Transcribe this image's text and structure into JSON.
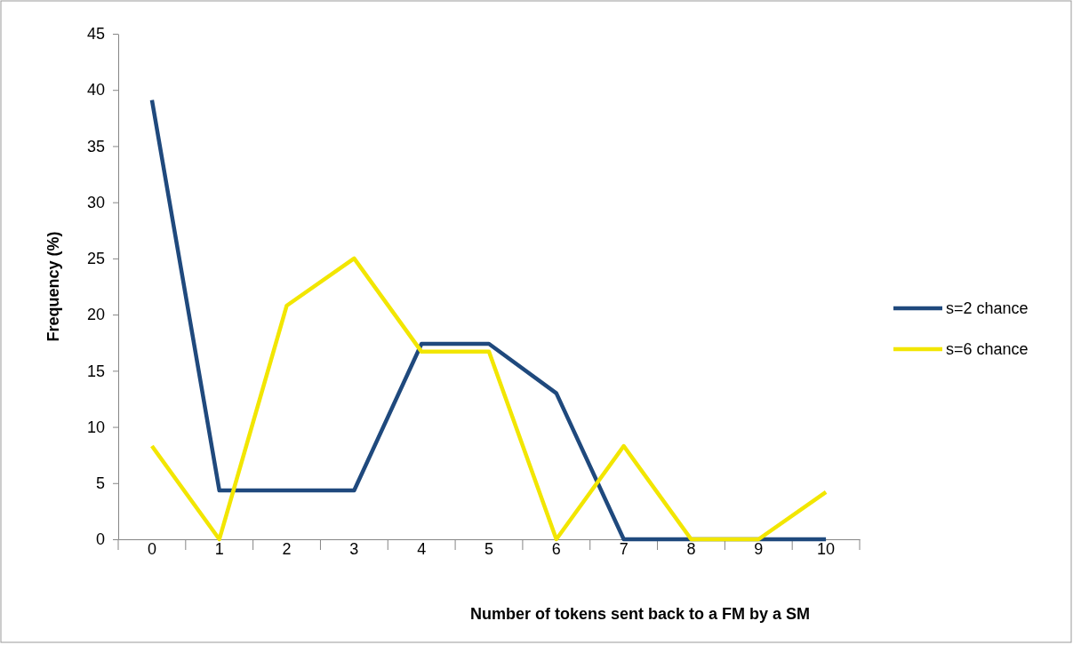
{
  "chart_data": {
    "type": "line",
    "xlabel": "Number of tokens sent back to a FM by a SM",
    "ylabel": "Frequency (%)",
    "categories": [
      "0",
      "1",
      "2",
      "3",
      "4",
      "5",
      "6",
      "7",
      "8",
      "9",
      "10"
    ],
    "ylim": [
      0,
      45
    ],
    "yticks": [
      0,
      5,
      10,
      15,
      20,
      25,
      30,
      35,
      40,
      45
    ],
    "grid": false,
    "legend": "right",
    "marker": "none",
    "line_style": "solid",
    "series": [
      {
        "name": "s=2 chance",
        "color": "#1f497d",
        "values": [
          39.1,
          4.35,
          4.35,
          4.35,
          17.4,
          17.4,
          13.0,
          0,
          0,
          0,
          0
        ]
      },
      {
        "name": "s=6 chance",
        "color": "#f2e600",
        "values": [
          8.3,
          0,
          20.8,
          25,
          16.7,
          16.7,
          0,
          8.3,
          0,
          0,
          4.2
        ]
      }
    ]
  }
}
